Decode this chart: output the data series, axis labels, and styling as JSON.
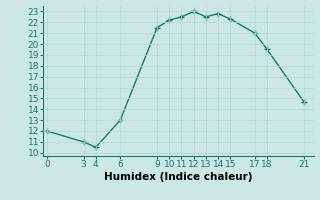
{
  "x": [
    0,
    3,
    4,
    6,
    9,
    10,
    11,
    12,
    13,
    14,
    15,
    17,
    18,
    21
  ],
  "y": [
    12.0,
    11.0,
    10.5,
    13.0,
    21.5,
    22.2,
    22.5,
    23.0,
    22.5,
    22.8,
    22.3,
    21.0,
    19.5,
    14.7
  ],
  "line_color": "#1a7a6e",
  "marker": "+",
  "marker_size": 4,
  "background_color": "#cce8e4",
  "grid_color": "#b8d8d4",
  "xlabel": "Humidex (Indice chaleur)",
  "xlabel_fontsize": 7.5,
  "xticks": [
    0,
    3,
    4,
    6,
    9,
    10,
    11,
    12,
    13,
    14,
    15,
    17,
    18,
    21
  ],
  "yticks": [
    10,
    11,
    12,
    13,
    14,
    15,
    16,
    17,
    18,
    19,
    20,
    21,
    22,
    23
  ],
  "tick_fontsize": 6.5,
  "line_width": 1.0,
  "xlim": [
    -0.3,
    21.8
  ],
  "ylim": [
    9.7,
    23.5
  ]
}
